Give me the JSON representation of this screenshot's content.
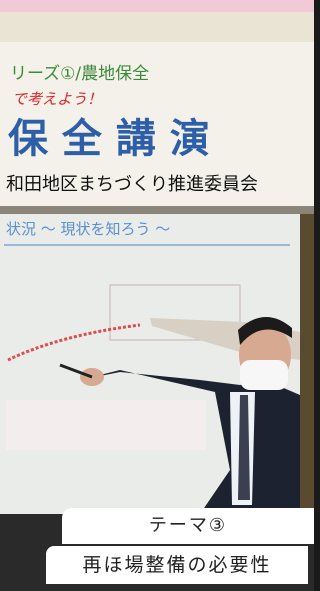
{
  "photo": {
    "banner_series": "リーズ①/農地保全",
    "banner_slogan": "で考えよう！",
    "banner_title": "保 全 講 演",
    "banner_organizer": "和田地区まちづくり推進委員会",
    "screen_heading": "状況 ～ 現状を知ろう ～"
  },
  "caption": {
    "theme": "テーマ③",
    "topic": "再ほ場整備の必要性"
  }
}
